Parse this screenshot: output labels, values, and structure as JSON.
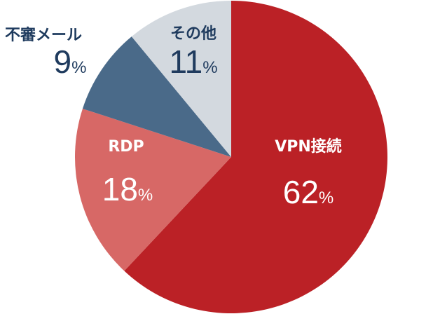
{
  "chart_data": {
    "type": "pie",
    "categories": [
      "VPN接続",
      "RDP",
      "不審メール",
      "その他"
    ],
    "values": [
      62,
      18,
      9,
      11
    ],
    "value_labels": [
      "62%",
      "18%",
      "9%",
      "11%"
    ],
    "colors": [
      "#bb2126",
      "#d76866",
      "#4a6a89",
      "#d3d9df"
    ]
  }
}
